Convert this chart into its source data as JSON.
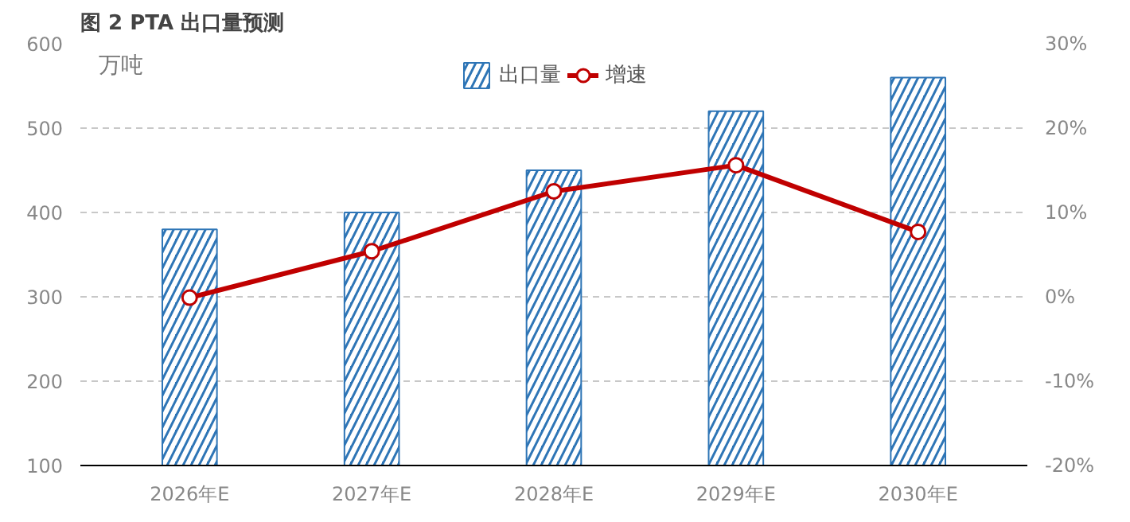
{
  "chart_data": {
    "type": "bar",
    "title": "图 2 PTA 出口量预测",
    "ylabel": "万吨",
    "categories": [
      "2026年E",
      "2027年E",
      "2028年E",
      "2029年E",
      "2030年E"
    ],
    "series": [
      {
        "name": "出口量",
        "color": "#2e75b6",
        "values": [
          380,
          400,
          450,
          520,
          560
        ]
      },
      {
        "name": "增速",
        "type": "line",
        "axis": "y2",
        "color": "#c00000",
        "values": [
          -0.1,
          5.4,
          12.5,
          15.6,
          7.7
        ]
      }
    ],
    "ylim": [
      100,
      600
    ],
    "yticks": [
      100,
      200,
      300,
      400,
      500,
      600
    ],
    "y2lim": [
      -20,
      30
    ],
    "y2ticks": [
      {
        "value": -20,
        "label": "-20%"
      },
      {
        "value": -10,
        "label": "-10%"
      },
      {
        "value": 0,
        "label": "0%"
      },
      {
        "value": 10,
        "label": "10%"
      },
      {
        "value": 20,
        "label": "20%"
      },
      {
        "value": 30,
        "label": "30%"
      }
    ],
    "grid": "y",
    "legend": "top",
    "marker": "circle"
  }
}
